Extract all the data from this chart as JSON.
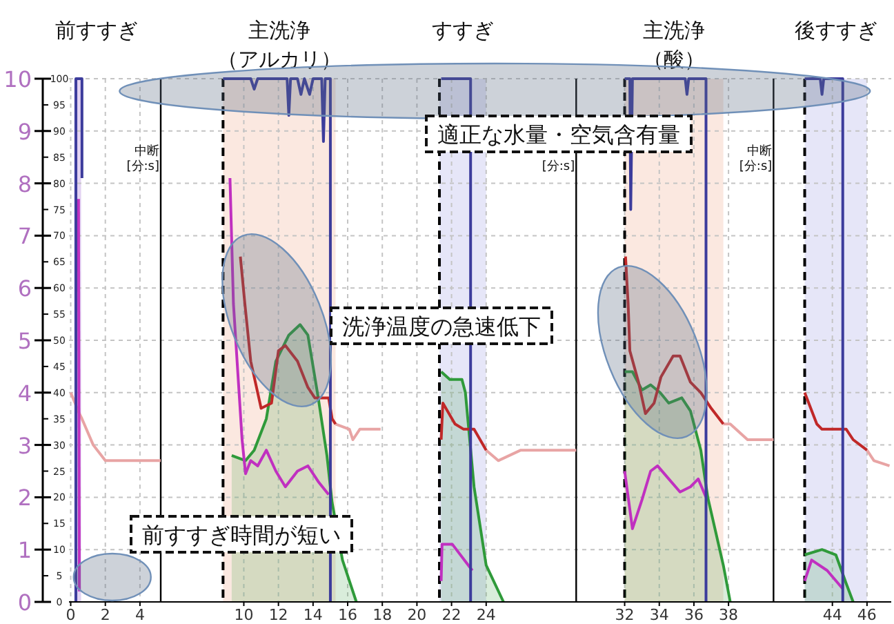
{
  "chart_data": {
    "type": "line",
    "xlim": [
      -0.1,
      47.4
    ],
    "xticks": [
      0,
      2,
      4,
      10,
      12,
      14,
      16,
      18,
      20,
      22,
      24,
      32,
      34,
      36,
      38,
      44,
      46
    ],
    "ylim": [
      0,
      10
    ],
    "yticks": [
      0,
      1,
      2,
      3,
      4,
      5,
      6,
      7,
      8,
      9,
      10
    ],
    "y2lim": [
      0,
      100
    ],
    "y2ticks": [
      0,
      5,
      10,
      15,
      20,
      25,
      30,
      35,
      40,
      45,
      50,
      55,
      60,
      65,
      70,
      75,
      80,
      85,
      90,
      95,
      100
    ],
    "grid": true,
    "series": [
      {
        "type": "area",
        "color": "#2f9a3a",
        "axis": "y",
        "x": [
          9.3,
          10.1,
          10.6,
          11.3,
          11.85,
          12.6,
          13.25,
          13.7,
          14.3,
          14.8,
          15.1,
          15.7,
          16.5
        ],
        "values": [
          2.8,
          2.7,
          2.9,
          3.5,
          4.6,
          5.1,
          5.3,
          5.1,
          3.9,
          2.8,
          1.9,
          0.8,
          0
        ]
      },
      {
        "type": "area",
        "color": "#2f9a3a",
        "axis": "y",
        "x": [
          21.4,
          21.9,
          22.6,
          22.8,
          23.3,
          24,
          25
        ],
        "values": [
          4.4,
          4.25,
          4.25,
          4.0,
          2.2,
          0.7,
          0
        ]
      },
      {
        "type": "area",
        "color": "#2f9a3a",
        "axis": "y",
        "x": [
          32,
          32.45,
          33,
          33.5,
          34.05,
          34.55,
          35.3,
          35.8,
          36.4,
          36.8,
          37.7,
          38.1
        ],
        "values": [
          4.4,
          4.4,
          4.05,
          4.15,
          4.0,
          3.8,
          3.9,
          3.65,
          2.9,
          2.0,
          0.7,
          0
        ]
      },
      {
        "type": "area",
        "color": "#2f9a3a",
        "axis": "y",
        "x": [
          42.4,
          43.4,
          44.2,
          44.8,
          45.2
        ],
        "values": [
          0.9,
          1.0,
          0.9,
          0.35,
          0
        ]
      },
      {
        "type": "line",
        "color": "#e8a4a4",
        "axis": "y2",
        "x": [
          0,
          0.5,
          0.65,
          1.3,
          2,
          5.2
        ],
        "values": [
          40,
          36,
          35,
          30,
          27,
          27
        ]
      },
      {
        "type": "line",
        "color": "#e8a4a4",
        "axis": "y2",
        "x": [
          15.3,
          16.1,
          16.3,
          16.7,
          17.9
        ],
        "values": [
          34,
          33,
          31,
          33,
          33
        ]
      },
      {
        "type": "line",
        "color": "#e8a4a4",
        "axis": "y2",
        "x": [
          24,
          24.7,
          26,
          29.2
        ],
        "values": [
          29,
          27,
          29,
          29
        ]
      },
      {
        "type": "line",
        "color": "#e8a4a4",
        "axis": "y2",
        "x": [
          37.7,
          38.1,
          39.1,
          40.6
        ],
        "values": [
          34,
          34,
          31,
          31
        ]
      },
      {
        "type": "line",
        "color": "#e8a4a4",
        "axis": "y2",
        "x": [
          46,
          46.4,
          47.3
        ],
        "values": [
          29,
          27,
          26
        ]
      },
      {
        "type": "line",
        "color": "#c02828",
        "axis": "y2",
        "x": [
          9.8,
          10.06,
          10.4,
          11.0,
          11.6,
          12.0,
          12.4,
          13.1,
          13.7,
          14.1,
          14.9,
          15.1,
          15.3
        ],
        "values": [
          66,
          57,
          46,
          37,
          38,
          48,
          49,
          46,
          41,
          39,
          39,
          35,
          34
        ]
      },
      {
        "type": "line",
        "color": "#c02828",
        "axis": "y2",
        "x": [
          21.4,
          21.5,
          22.2,
          22.7,
          23.3,
          24
        ],
        "values": [
          31,
          38,
          34,
          33,
          33,
          29
        ]
      },
      {
        "type": "line",
        "color": "#c02828",
        "axis": "y2",
        "x": [
          32.05,
          32.2,
          32.3,
          32.8,
          33.2,
          33.7,
          34.1,
          34.8,
          35.2,
          35.8,
          36.4,
          37.0,
          37.7
        ],
        "values": [
          66,
          57,
          48,
          42,
          36,
          38,
          43,
          47,
          47,
          42,
          40,
          37,
          34
        ]
      },
      {
        "type": "line",
        "color": "#c02828",
        "axis": "y2",
        "x": [
          42.4,
          43.1,
          43.4,
          44.8,
          45.2,
          46
        ],
        "values": [
          40,
          34,
          33,
          33,
          31,
          29
        ]
      },
      {
        "type": "line",
        "color": "#c030c0",
        "axis": "y",
        "x": [
          0.45,
          0.5
        ],
        "values": [
          7.7,
          0.2
        ]
      },
      {
        "type": "line",
        "color": "#c030c0",
        "axis": "y",
        "x": [
          9.2,
          9.4,
          9.9,
          10.1,
          10.4,
          10.8,
          11.3,
          11.85,
          12.4,
          13.1,
          13.7,
          14.3,
          14.9
        ],
        "values": [
          8.1,
          5.7,
          3.1,
          2.45,
          2.7,
          2.6,
          2.9,
          2.5,
          2.2,
          2.5,
          2.6,
          2.3,
          2.05
        ]
      },
      {
        "type": "line",
        "color": "#c030c0",
        "axis": "y",
        "x": [
          21.4,
          21.45,
          22.05,
          23.2
        ],
        "values": [
          0.4,
          1.1,
          1.1,
          0.6
        ]
      },
      {
        "type": "line",
        "color": "#c030c0",
        "axis": "y",
        "x": [
          32,
          32.45,
          33,
          33.5,
          33.9,
          34.55,
          35.2,
          35.8,
          36.25,
          36.7
        ],
        "values": [
          2.5,
          1.4,
          1.95,
          2.5,
          2.6,
          2.35,
          2.1,
          2.2,
          2.35,
          2.0
        ]
      },
      {
        "type": "line",
        "color": "#c030c0",
        "axis": "y",
        "x": [
          42.4,
          42.8,
          43.7,
          44.6
        ],
        "values": [
          0.4,
          0.8,
          0.6,
          0.25
        ]
      },
      {
        "type": "line",
        "color": "#3c3c9c",
        "axis": "y2",
        "x": [
          0.3,
          0.3,
          0.65,
          0.65
        ],
        "values": [
          0,
          100,
          100,
          81
        ]
      },
      {
        "type": "line",
        "color": "#3c3c9c",
        "axis": "y2",
        "x": [
          8.8,
          10.4,
          10.6,
          10.8,
          12.5,
          12.6,
          12.7,
          13.1,
          13.3,
          13.5,
          13.8,
          14.0,
          14.5,
          14.6,
          14.7,
          15.0,
          15.0
        ],
        "values": [
          100,
          100,
          98,
          100,
          100,
          93,
          100,
          100,
          97,
          100,
          97,
          100,
          100,
          88,
          100,
          100,
          0
        ]
      },
      {
        "type": "line",
        "color": "#3c3c9c",
        "axis": "y2",
        "x": [
          21.4,
          23.1,
          23.1
        ],
        "values": [
          100,
          100,
          0
        ]
      },
      {
        "type": "line",
        "color": "#3c3c9c",
        "axis": "y2",
        "x": [
          32.0,
          32.3,
          32.35,
          32.45,
          35.5,
          35.6,
          35.7,
          36.7,
          36.7
        ],
        "values": [
          100,
          100,
          75,
          100,
          100,
          97,
          100,
          100,
          0
        ]
      },
      {
        "type": "line",
        "color": "#3c3c9c",
        "axis": "y2",
        "x": [
          42.4,
          43.3,
          43.4,
          43.5,
          44.6,
          44.6
        ],
        "values": [
          100,
          100,
          97,
          100,
          100,
          0
        ]
      }
    ],
    "bands": [
      {
        "axis": "x",
        "from": 0.2,
        "to": 0.6,
        "label": "前すすぎ",
        "color": "#e2d2f2"
      },
      {
        "axis": "x",
        "from": 8.8,
        "to": 15.3,
        "label": "主洗浄（アルカリ）",
        "color": "#fbe8e0"
      },
      {
        "axis": "x",
        "from": 21.3,
        "to": 24,
        "label": "すすぎ",
        "color": "#e6e6f8"
      },
      {
        "axis": "x",
        "from": 32,
        "to": 37.7,
        "label": "主洗浄（酸）",
        "color": "#fbe8e0"
      },
      {
        "axis": "x",
        "from": 42.4,
        "to": 46,
        "label": "後すすぎ",
        "color": "#e6e6f8"
      }
    ],
    "ref_lines": [
      {
        "axis": "x",
        "value": 8.8,
        "color": "#000000",
        "line_style": "dashed"
      },
      {
        "axis": "x",
        "value": 21.3,
        "color": "#000000",
        "line_style": "dashed"
      },
      {
        "axis": "x",
        "value": 32,
        "color": "#000000",
        "line_style": "dashed"
      },
      {
        "axis": "x",
        "value": 42.4,
        "color": "#000000",
        "line_style": "dashed"
      },
      {
        "axis": "x",
        "value": 5.2,
        "label": "中断\n[分:s]",
        "color": "#000000",
        "line_style": "solid"
      },
      {
        "axis": "x",
        "value": 29.2,
        "label": "[分:s]",
        "color": "#000000",
        "line_style": "solid"
      },
      {
        "axis": "x",
        "value": 40.6,
        "label": "中断\n[分:s]",
        "color": "#000000",
        "line_style": "solid"
      }
    ],
    "annotations": [
      "適正な水量・空気含有量",
      "洗浄温度の急速低下",
      "前すすぎ時間が短い"
    ]
  }
}
